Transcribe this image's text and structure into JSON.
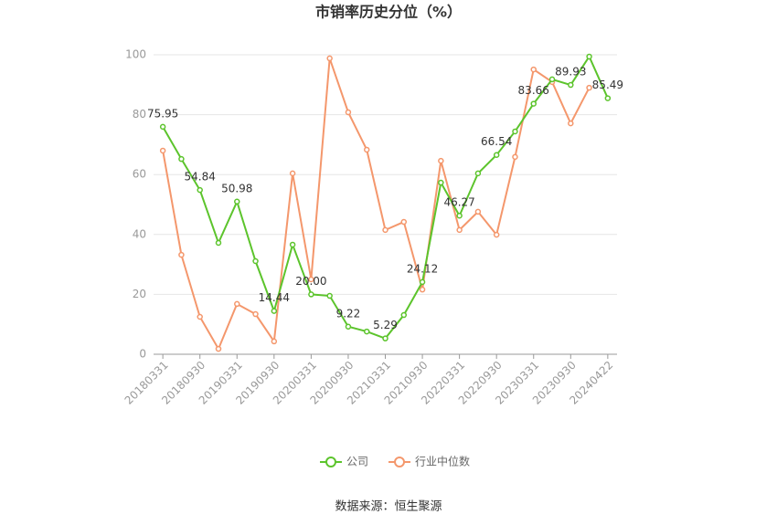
{
  "chart_data": {
    "type": "line",
    "title": "市销率历史分位（%）",
    "source": "数据来源：恒生聚源",
    "categories": [
      "20180331",
      null,
      "20180930",
      null,
      "20190331",
      null,
      "20190930",
      null,
      "20200331",
      null,
      "20200930",
      null,
      "20210331",
      null,
      "20210930",
      null,
      "20220331",
      null,
      "20220930",
      null,
      "20230331",
      null,
      "20230930",
      null,
      "20240422"
    ],
    "series": [
      {
        "name": "公司",
        "color": "#5cc42c",
        "values": [
          75.95,
          65.2,
          54.84,
          37.2,
          50.98,
          31.1,
          14.44,
          36.6,
          20.0,
          19.5,
          9.22,
          7.6,
          5.29,
          13.1,
          24.12,
          57.3,
          46.27,
          60.4,
          66.54,
          74.4,
          83.66,
          91.8,
          89.93,
          99.4,
          85.49
        ],
        "value_labels": [
          "75.95",
          null,
          "54.84",
          null,
          "50.98",
          null,
          "14.44",
          null,
          "20.00",
          null,
          "9.22",
          null,
          "5.29",
          null,
          "24.12",
          null,
          "46.27",
          null,
          "66.54",
          null,
          "83.66",
          null,
          "89.93",
          null,
          "85.49"
        ]
      },
      {
        "name": "行业中位数",
        "color": "#f4976c",
        "values": [
          68.0,
          33.2,
          12.5,
          1.8,
          16.8,
          13.4,
          4.3,
          60.4,
          25.0,
          98.8,
          80.8,
          68.3,
          41.5,
          44.2,
          21.6,
          64.6,
          41.5,
          47.6,
          39.9,
          65.9,
          95.1,
          90.9,
          77.1,
          89.0,
          null
        ]
      }
    ],
    "ylim": [
      0,
      100
    ],
    "yticks": [
      0,
      20,
      40,
      60,
      80,
      100
    ],
    "grid": true,
    "legend": "bottom"
  }
}
